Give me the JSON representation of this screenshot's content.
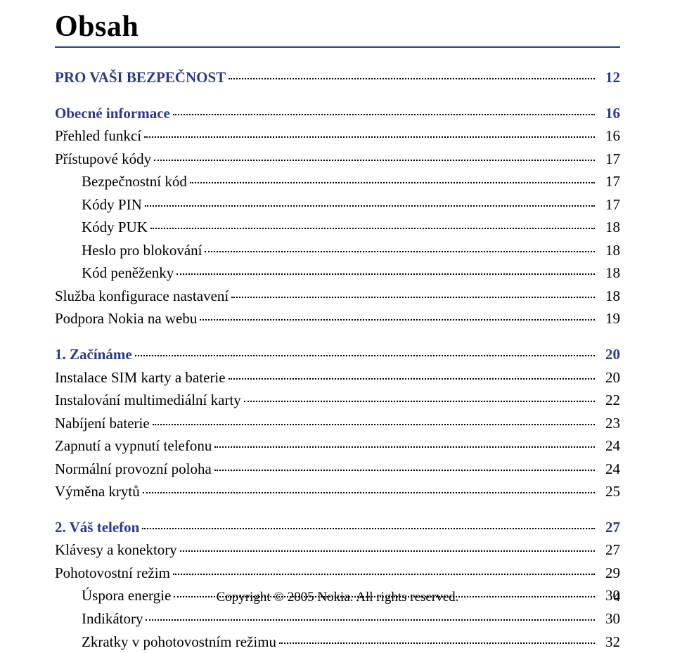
{
  "title": "Obsah",
  "colors": {
    "accent": "#2a3a8a",
    "text": "#000000",
    "background": "#ffffff"
  },
  "toc": [
    {
      "label": "PRO VAŠI BEZPEČNOST",
      "page": "12",
      "heading": true,
      "indent": false,
      "gap": false
    },
    {
      "label": "Obecné informace",
      "page": "16",
      "heading": true,
      "indent": false,
      "gap": true
    },
    {
      "label": "Přehled funkcí",
      "page": "16",
      "heading": false,
      "indent": false,
      "gap": false
    },
    {
      "label": "Přístupové kódy",
      "page": "17",
      "heading": false,
      "indent": false,
      "gap": false
    },
    {
      "label": "Bezpečnostní kód",
      "page": "17",
      "heading": false,
      "indent": true,
      "gap": false
    },
    {
      "label": "Kódy PIN",
      "page": "17",
      "heading": false,
      "indent": true,
      "gap": false
    },
    {
      "label": "Kódy PUK",
      "page": "18",
      "heading": false,
      "indent": true,
      "gap": false
    },
    {
      "label": "Heslo pro blokování",
      "page": "18",
      "heading": false,
      "indent": true,
      "gap": false
    },
    {
      "label": "Kód peněženky",
      "page": "18",
      "heading": false,
      "indent": true,
      "gap": false
    },
    {
      "label": "Služba konfigurace nastavení",
      "page": "18",
      "heading": false,
      "indent": false,
      "gap": false
    },
    {
      "label": "Podpora Nokia na webu",
      "page": "19",
      "heading": false,
      "indent": false,
      "gap": false
    },
    {
      "label": "1. Začínáme",
      "page": "20",
      "heading": true,
      "indent": false,
      "gap": true
    },
    {
      "label": "Instalace SIM karty a baterie",
      "page": "20",
      "heading": false,
      "indent": false,
      "gap": false
    },
    {
      "label": "Instalování multimediální karty",
      "page": "22",
      "heading": false,
      "indent": false,
      "gap": false
    },
    {
      "label": "Nabíjení baterie",
      "page": "23",
      "heading": false,
      "indent": false,
      "gap": false
    },
    {
      "label": "Zapnutí a vypnutí telefonu",
      "page": "24",
      "heading": false,
      "indent": false,
      "gap": false
    },
    {
      "label": "Normální provozní poloha",
      "page": "24",
      "heading": false,
      "indent": false,
      "gap": false
    },
    {
      "label": "Výměna krytů",
      "page": "25",
      "heading": false,
      "indent": false,
      "gap": false
    },
    {
      "label": "2. Váš telefon",
      "page": "27",
      "heading": true,
      "indent": false,
      "gap": true
    },
    {
      "label": "Klávesy a konektory",
      "page": "27",
      "heading": false,
      "indent": false,
      "gap": false
    },
    {
      "label": "Pohotovostní režim",
      "page": "29",
      "heading": false,
      "indent": false,
      "gap": false
    },
    {
      "label": "Úspora energie",
      "page": "30",
      "heading": false,
      "indent": true,
      "gap": false
    },
    {
      "label": "Indikátory",
      "page": "30",
      "heading": false,
      "indent": true,
      "gap": false
    },
    {
      "label": "Zkratky v pohotovostním režimu",
      "page": "32",
      "heading": false,
      "indent": true,
      "gap": false
    }
  ],
  "footer": {
    "text": "Copyright © 2005 Nokia. All rights reserved.",
    "page": "4"
  }
}
